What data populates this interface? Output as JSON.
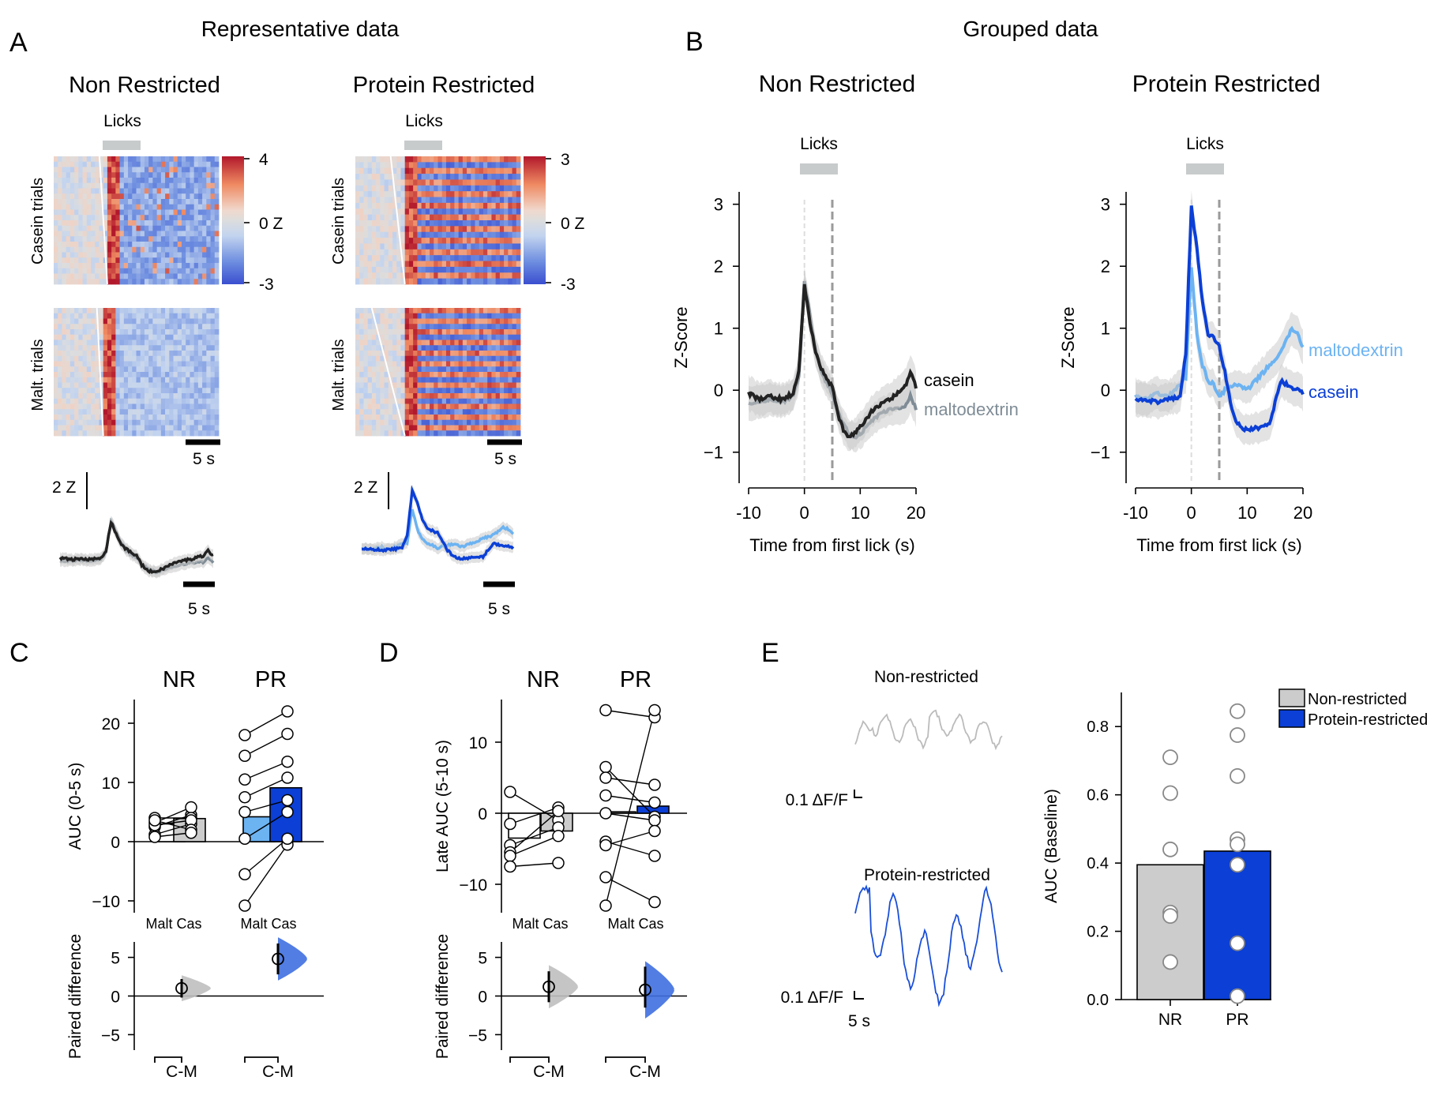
{
  "colors": {
    "nr_casein": "#222222",
    "nr_malto": "#7f8c96",
    "pr_casein": "#0b3fd6",
    "pr_malto": "#6cb3f2",
    "bar_grey": "#cccccc",
    "licks_bar": "#c8cbcc"
  },
  "panelA": {
    "letter": "A",
    "header": "Representative data",
    "nr_title": "Non Restricted",
    "pr_title": "Protein Restricted",
    "licks_label": "Licks",
    "casein_row_label": "Casein trials",
    "malt_row_label": "Malt. trials",
    "nr_colorbar": {
      "max": "4",
      "mid": "0 Z",
      "min": "-3"
    },
    "pr_colorbar": {
      "max": "3",
      "mid": "0 Z",
      "min": "-3"
    },
    "scale_5s": "5 s",
    "scale_2z": "2 Z"
  },
  "panelB": {
    "letter": "B",
    "header": "Grouped data",
    "nr_title": "Non Restricted",
    "pr_title": "Protein Restricted",
    "licks_label": "Licks",
    "ylabel": "Z-Score",
    "xlabel": "Time from first lick (s)",
    "xticks": [
      "-10",
      "0",
      "10",
      "20"
    ],
    "yticks": [
      "−1",
      "0",
      "1",
      "2",
      "3"
    ],
    "nr_legend": {
      "casein": "casein",
      "malto": "maltodextrin"
    },
    "pr_legend": {
      "casein": "casein",
      "malto": "maltodextrin"
    }
  },
  "panelC": {
    "letter": "C",
    "groups": [
      "NR",
      "PR"
    ],
    "ylabel": "AUC (0-5 s)",
    "yticks": [
      "−10",
      "0",
      "10",
      "20"
    ],
    "xcat_nr": "Malt Cas",
    "xcat_pr": "Malt Cas",
    "diff_ylabel": "Paired difference",
    "diff_yticks": [
      "−5",
      "0",
      "5"
    ],
    "diff_label": "C-M"
  },
  "panelD": {
    "letter": "D",
    "groups": [
      "NR",
      "PR"
    ],
    "ylabel": "Late AUC (5-10 s)",
    "yticks": [
      "−10",
      "0",
      "10"
    ],
    "xcat_nr": "Malt Cas",
    "xcat_pr": "Malt Cas",
    "diff_ylabel": "Paired difference",
    "diff_yticks": [
      "−5",
      "0",
      "5"
    ],
    "diff_label": "C-M"
  },
  "panelE": {
    "letter": "E",
    "trace_nr_title": "Non-restricted",
    "trace_pr_title": "Protein-restricted",
    "scale_dff": "0.1 ΔF/F",
    "scale_time": "5 s",
    "ylabel": "AUC (Baseline)",
    "yticks": [
      "0.0",
      "0.2",
      "0.4",
      "0.6",
      "0.8"
    ],
    "categories": [
      "NR",
      "PR"
    ],
    "legend": [
      "Non-restricted",
      "Protein-restricted"
    ]
  },
  "chart_data": [
    {
      "type": "line",
      "panel": "B-left",
      "title": "Non Restricted",
      "xlabel": "Time from first lick (s)",
      "ylabel": "Z-Score",
      "xlim": [
        -10,
        20
      ],
      "ylim": [
        -1.5,
        3.2
      ],
      "series": [
        {
          "name": "casein",
          "x": [
            -10,
            -8,
            -6,
            -4,
            -2,
            -1,
            0,
            1,
            2,
            3,
            4,
            5,
            6,
            7,
            8,
            9,
            10,
            12,
            14,
            16,
            18,
            19,
            20
          ],
          "y": [
            -0.05,
            -0.15,
            -0.1,
            -0.15,
            -0.05,
            0.3,
            1.7,
            1.1,
            0.6,
            0.35,
            0.2,
            0.05,
            -0.4,
            -0.65,
            -0.75,
            -0.7,
            -0.6,
            -0.35,
            -0.2,
            -0.1,
            0.05,
            0.3,
            0.05
          ]
        },
        {
          "name": "maltodextrin",
          "x": [
            -10,
            -8,
            -6,
            -4,
            -2,
            -1,
            0,
            1,
            2,
            3,
            4,
            5,
            6,
            7,
            8,
            9,
            10,
            12,
            14,
            16,
            18,
            19,
            20
          ],
          "y": [
            -0.2,
            -0.2,
            -0.15,
            -0.2,
            -0.1,
            0.2,
            1.75,
            1.2,
            0.65,
            0.3,
            0.1,
            -0.05,
            -0.35,
            -0.55,
            -0.7,
            -0.75,
            -0.7,
            -0.5,
            -0.35,
            -0.3,
            -0.25,
            -0.1,
            -0.3
          ]
        }
      ]
    },
    {
      "type": "line",
      "panel": "B-right",
      "title": "Protein Restricted",
      "xlabel": "Time from first lick (s)",
      "ylabel": "Z-Score",
      "xlim": [
        -10,
        20
      ],
      "ylim": [
        -1.5,
        3.2
      ],
      "series": [
        {
          "name": "casein",
          "x": [
            -10,
            -8,
            -6,
            -4,
            -2,
            -1,
            0,
            1,
            2,
            3,
            4,
            5,
            6,
            7,
            8,
            9,
            10,
            12,
            14,
            15,
            16,
            17,
            18,
            20
          ],
          "y": [
            -0.15,
            -0.15,
            -0.2,
            -0.15,
            -0.1,
            0.6,
            2.95,
            2.3,
            1.4,
            0.9,
            0.85,
            0.7,
            0.3,
            -0.2,
            -0.5,
            -0.6,
            -0.65,
            -0.6,
            -0.55,
            -0.2,
            0.15,
            0.1,
            0.05,
            -0.05
          ]
        },
        {
          "name": "maltodextrin",
          "x": [
            -10,
            -8,
            -6,
            -4,
            -2,
            -1,
            0,
            1,
            2,
            3,
            4,
            5,
            6,
            7,
            8,
            10,
            12,
            14,
            16,
            17,
            18,
            19,
            20
          ],
          "y": [
            -0.1,
            -0.15,
            -0.05,
            -0.1,
            0.1,
            0.2,
            2.0,
            0.9,
            0.4,
            0.15,
            0.1,
            -0.1,
            0.0,
            0.05,
            0.1,
            0.0,
            0.2,
            0.4,
            0.6,
            0.8,
            1.0,
            0.9,
            0.7
          ]
        }
      ]
    },
    {
      "type": "bar",
      "panel": "C",
      "ylabel": "AUC (0-5 s)",
      "ylim": [
        -12,
        24
      ],
      "categories": [
        "NR Malt",
        "NR Cas",
        "PR Malt",
        "PR Cas"
      ],
      "values": [
        3.0,
        3.9,
        4.2,
        9.1
      ],
      "points": {
        "NR": [
          [
            1.2,
            3.0
          ],
          [
            2.5,
            4.5
          ],
          [
            3.2,
            5.8
          ],
          [
            4.0,
            4.0
          ],
          [
            2.8,
            3.6
          ],
          [
            3.6,
            2.0
          ],
          [
            0.8,
            1.5
          ]
        ],
        "PR": [
          [
            -10.8,
            -0.5
          ],
          [
            -5.5,
            0.5
          ],
          [
            0.5,
            5.0
          ],
          [
            5.0,
            7.0
          ],
          [
            7.5,
            10.8
          ],
          [
            10.5,
            13.5
          ],
          [
            14.5,
            18.2
          ],
          [
            18.0,
            22.0
          ]
        ]
      },
      "paired_difference": {
        "NR": {
          "mean": 1.0,
          "ci": [
            -0.2,
            2.2
          ]
        },
        "PR": {
          "mean": 4.8,
          "ci": [
            2.8,
            6.8
          ]
        }
      }
    },
    {
      "type": "bar",
      "panel": "D",
      "ylabel": "Late AUC (5-10 s)",
      "ylim": [
        -14,
        16
      ],
      "categories": [
        "NR Malt",
        "NR Cas",
        "PR Malt",
        "PR Cas"
      ],
      "values": [
        -3.5,
        -2.5,
        0.2,
        1.0
      ],
      "points": {
        "NR": [
          [
            3.0,
            -1.0
          ],
          [
            -1.5,
            0.8
          ],
          [
            -4.5,
            -2.0
          ],
          [
            -5.5,
            0.3
          ],
          [
            -6.0,
            -3.2
          ],
          [
            -7.5,
            -7.0
          ]
        ],
        "PR": [
          [
            14.5,
            13.5
          ],
          [
            6.5,
            -0.5
          ],
          [
            5.0,
            4.0
          ],
          [
            2.5,
            1.5
          ],
          [
            0.0,
            -1.0
          ],
          [
            -4.0,
            -6.0
          ],
          [
            -4.5,
            -2.5
          ],
          [
            -9.0,
            -12.5
          ],
          [
            -13.0,
            14.5
          ]
        ]
      },
      "paired_difference": {
        "NR": {
          "mean": 1.2,
          "ci": [
            -0.8,
            3.2
          ]
        },
        "PR": {
          "mean": 0.8,
          "ci": [
            -1.5,
            3.8
          ]
        }
      }
    },
    {
      "type": "bar",
      "panel": "E",
      "ylabel": "AUC (Baseline)",
      "ylim": [
        0,
        0.9
      ],
      "categories": [
        "NR",
        "PR"
      ],
      "values": [
        0.395,
        0.435
      ],
      "points": {
        "NR": [
          0.71,
          0.605,
          0.44,
          0.255,
          0.245,
          0.11
        ],
        "PR": [
          0.845,
          0.775,
          0.655,
          0.47,
          0.455,
          0.395,
          0.165,
          0.01
        ]
      }
    }
  ]
}
